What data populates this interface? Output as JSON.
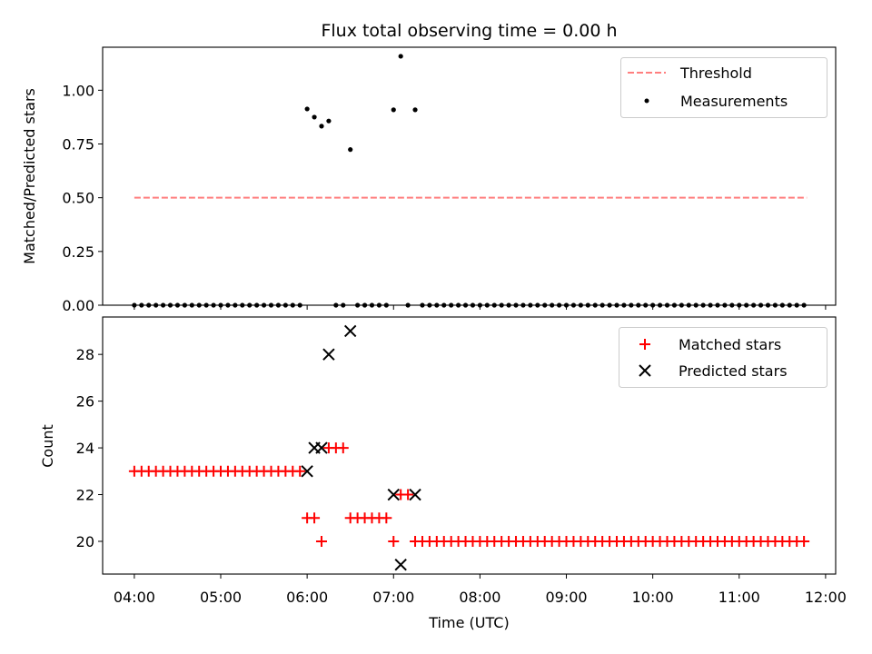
{
  "chart_data": [
    {
      "type": "scatter",
      "title": "Flux total observing time = 0.00 h",
      "xlabel": "",
      "ylabel": "Matched/Predicted stars",
      "xlim": [
        "03:38",
        "12:07"
      ],
      "ylim": [
        0,
        1.2
      ],
      "yticks": [
        0.0,
        0.25,
        0.5,
        0.75,
        1.0
      ],
      "ytick_labels": [
        "0.00",
        "0.25",
        "0.50",
        "0.75",
        "1.00"
      ],
      "legend_position": "top-right",
      "threshold": {
        "name": "Threshold",
        "value": 0.5,
        "x_start": "04:00",
        "x_end": "11:47",
        "color": "#ff7f7f",
        "style": "dashed"
      },
      "series": [
        {
          "name": "Measurements",
          "color": "#000000",
          "x": [
            "04:00",
            "04:05",
            "04:10",
            "04:15",
            "04:20",
            "04:25",
            "04:30",
            "04:35",
            "04:40",
            "04:45",
            "04:50",
            "04:55",
            "05:00",
            "05:05",
            "05:10",
            "05:15",
            "05:20",
            "05:25",
            "05:30",
            "05:35",
            "05:40",
            "05:45",
            "05:50",
            "05:55",
            "06:00",
            "06:05",
            "06:10",
            "06:15",
            "06:20",
            "06:25",
            "06:30",
            "06:35",
            "06:40",
            "06:45",
            "06:50",
            "06:55",
            "07:00",
            "07:05",
            "07:10",
            "07:15",
            "07:20",
            "07:25",
            "07:30",
            "07:35",
            "07:40",
            "07:45",
            "07:50",
            "07:55",
            "08:00",
            "08:05",
            "08:10",
            "08:15",
            "08:20",
            "08:25",
            "08:30",
            "08:35",
            "08:40",
            "08:45",
            "08:50",
            "08:55",
            "09:00",
            "09:05",
            "09:10",
            "09:15",
            "09:20",
            "09:25",
            "09:30",
            "09:35",
            "09:40",
            "09:45",
            "09:50",
            "09:55",
            "10:00",
            "10:05",
            "10:10",
            "10:15",
            "10:20",
            "10:25",
            "10:30",
            "10:35",
            "10:40",
            "10:45",
            "10:50",
            "10:55",
            "11:00",
            "11:05",
            "11:10",
            "11:15",
            "11:20",
            "11:25",
            "11:30",
            "11:35",
            "11:40",
            "11:45"
          ],
          "y": [
            0,
            0,
            0,
            0,
            0,
            0,
            0,
            0,
            0,
            0,
            0,
            0,
            0,
            0,
            0,
            0,
            0,
            0,
            0,
            0,
            0,
            0,
            0,
            0,
            0.913,
            0.875,
            0.833,
            0.857,
            0,
            0,
            0.724,
            0,
            0,
            0,
            0,
            0,
            0.909,
            1.158,
            0,
            0.909,
            0,
            0,
            0,
            0,
            0,
            0,
            0,
            0,
            0,
            0,
            0,
            0,
            0,
            0,
            0,
            0,
            0,
            0,
            0,
            0,
            0,
            0,
            0,
            0,
            0,
            0,
            0,
            0,
            0,
            0,
            0,
            0,
            0,
            0,
            0,
            0,
            0,
            0,
            0,
            0,
            0,
            0,
            0,
            0,
            0,
            0,
            0,
            0,
            0,
            0,
            0,
            0,
            0,
            0
          ]
        }
      ]
    },
    {
      "type": "scatter",
      "title": "",
      "xlabel": "Time (UTC)",
      "ylabel": "Count",
      "xlim": [
        "03:38",
        "12:07"
      ],
      "ylim": [
        18.6,
        29.6
      ],
      "yticks": [
        20,
        22,
        24,
        26,
        28
      ],
      "xticks": [
        "04:00",
        "05:00",
        "06:00",
        "07:00",
        "08:00",
        "09:00",
        "10:00",
        "11:00",
        "12:00"
      ],
      "legend_position": "top-right",
      "series": [
        {
          "name": "Matched stars",
          "marker": "plus",
          "color": "#ff0000",
          "x": [
            "04:00",
            "04:05",
            "04:10",
            "04:15",
            "04:20",
            "04:25",
            "04:30",
            "04:35",
            "04:40",
            "04:45",
            "04:50",
            "04:55",
            "05:00",
            "05:05",
            "05:10",
            "05:15",
            "05:20",
            "05:25",
            "05:30",
            "05:35",
            "05:40",
            "05:45",
            "05:50",
            "05:55",
            "06:00",
            "06:05",
            "06:10",
            "06:15",
            "06:20",
            "06:25",
            "06:30",
            "06:35",
            "06:40",
            "06:45",
            "06:50",
            "06:55",
            "07:00",
            "07:05",
            "07:10",
            "07:15",
            "07:20",
            "07:25",
            "07:30",
            "07:35",
            "07:40",
            "07:45",
            "07:50",
            "07:55",
            "08:00",
            "08:05",
            "08:10",
            "08:15",
            "08:20",
            "08:25",
            "08:30",
            "08:35",
            "08:40",
            "08:45",
            "08:50",
            "08:55",
            "09:00",
            "09:05",
            "09:10",
            "09:15",
            "09:20",
            "09:25",
            "09:30",
            "09:35",
            "09:40",
            "09:45",
            "09:50",
            "09:55",
            "10:00",
            "10:05",
            "10:10",
            "10:15",
            "10:20",
            "10:25",
            "10:30",
            "10:35",
            "10:40",
            "10:45",
            "10:50",
            "10:55",
            "11:00",
            "11:05",
            "11:10",
            "11:15",
            "11:20",
            "11:25",
            "11:30",
            "11:35",
            "11:40",
            "11:45"
          ],
          "y": [
            23,
            23,
            23,
            23,
            23,
            23,
            23,
            23,
            23,
            23,
            23,
            23,
            23,
            23,
            23,
            23,
            23,
            23,
            23,
            23,
            23,
            23,
            23,
            23,
            21,
            21,
            20,
            24,
            24,
            24,
            21,
            21,
            21,
            21,
            21,
            21,
            20,
            22,
            22,
            20,
            20,
            20,
            20,
            20,
            20,
            20,
            20,
            20,
            20,
            20,
            20,
            20,
            20,
            20,
            20,
            20,
            20,
            20,
            20,
            20,
            20,
            20,
            20,
            20,
            20,
            20,
            20,
            20,
            20,
            20,
            20,
            20,
            20,
            20,
            20,
            20,
            20,
            20,
            20,
            20,
            20,
            20,
            20,
            20,
            20,
            20,
            20,
            20,
            20,
            20,
            20,
            20,
            20,
            20
          ]
        },
        {
          "name": "Predicted stars",
          "marker": "x",
          "color": "#000000",
          "x": [
            "06:00",
            "06:05",
            "06:10",
            "06:15",
            "06:30",
            "07:00",
            "07:05",
            "07:15"
          ],
          "y": [
            23,
            24,
            24,
            28,
            29,
            22,
            19,
            22
          ]
        }
      ]
    }
  ]
}
